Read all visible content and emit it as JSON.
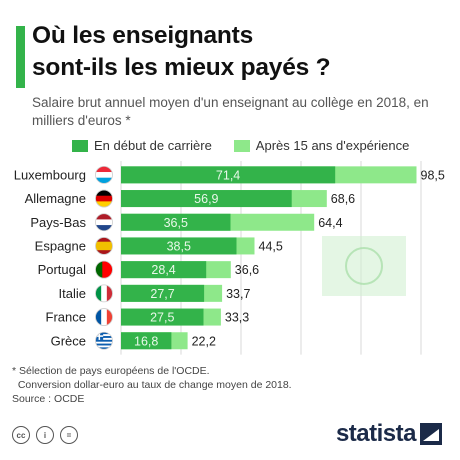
{
  "header": {
    "title": "Où les enseignants\nsont-ils les mieux payés ?",
    "subtitle": "Salaire brut annuel moyen d'un enseignant au collège en 2018, en milliers d'euros *"
  },
  "colors": {
    "accent": "#33b34a",
    "series_start": "#33b34a",
    "series_15y": "#8ee88a",
    "brand": "#1b2a48"
  },
  "chart_data": {
    "type": "bar",
    "orientation": "horizontal",
    "categories": [
      "Luxembourg",
      "Allemagne",
      "Pays-Bas",
      "Espagne",
      "Portugal",
      "Italie",
      "France",
      "Grèce"
    ],
    "flags": [
      "lu",
      "de",
      "nl",
      "es",
      "pt",
      "it",
      "fr",
      "gr"
    ],
    "series": [
      {
        "name": "En début de carrière",
        "values": [
          71.4,
          56.9,
          36.5,
          38.5,
          28.4,
          27.7,
          27.5,
          16.8
        ],
        "labels": [
          "71,4",
          "56,9",
          "36,5",
          "38,5",
          "28,4",
          "27,7",
          "27,5",
          "16,8"
        ]
      },
      {
        "name": "Après 15 ans d'expérience",
        "values": [
          98.5,
          68.6,
          64.4,
          44.5,
          36.6,
          33.7,
          33.3,
          22.2
        ],
        "labels": [
          "98,5",
          "68,6",
          "64,4",
          "44,5",
          "36,6",
          "33,7",
          "33,3",
          "22,2"
        ]
      }
    ],
    "xlim": [
      0,
      100
    ],
    "xticks": [
      0,
      20,
      40,
      60,
      80,
      100
    ],
    "xticklabels": [
      "0",
      "20",
      "40",
      "60",
      "80",
      "100"
    ],
    "grid": "vertical",
    "legend": "top"
  },
  "footnote": {
    "line1": "* Sélection de pays européens de l'OCDE.",
    "line2": "  Conversion dollar-euro au taux de change moyen de 2018.",
    "line3": "Source : OCDE"
  },
  "license_icons": [
    "cc-icon",
    "info-icon",
    "equals-icon"
  ],
  "brand": {
    "name": "statista"
  }
}
